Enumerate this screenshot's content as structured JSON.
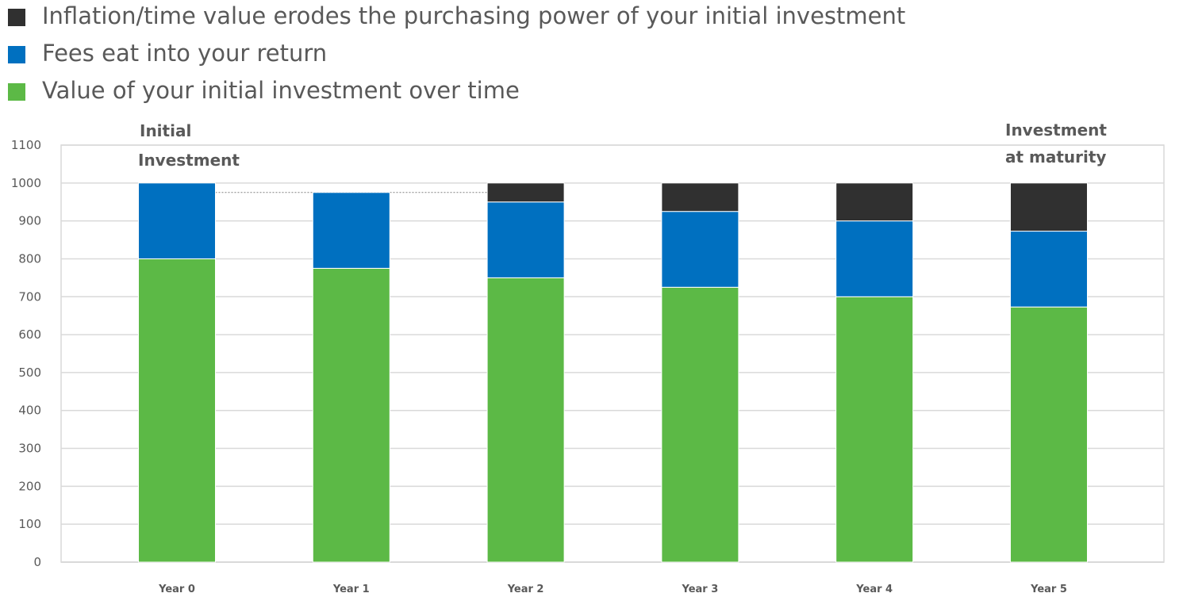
{
  "chart_data": {
    "type": "bar",
    "stacked": true,
    "categories": [
      "Year 0",
      "Year 1",
      "Year 2",
      "Year 3",
      "Year 4",
      "Year 5"
    ],
    "series": [
      {
        "name": "Value of your initial investment over time",
        "color": "#5cb946",
        "values": [
          800,
          775,
          750,
          725,
          700,
          673
        ]
      },
      {
        "name": "Fees eat into your return",
        "color": "#0070c0",
        "values": [
          200,
          200,
          200,
          200,
          200,
          200
        ]
      },
      {
        "name": "Inflation/time value erodes the purchasing power of your initial investment",
        "color": "#303030",
        "values": [
          0,
          0,
          50,
          75,
          100,
          127
        ]
      }
    ],
    "y_ticks": [
      0,
      100,
      200,
      300,
      400,
      500,
      600,
      700,
      800,
      900,
      1000,
      1100
    ],
    "ylim": [
      0,
      1100
    ],
    "grid": true,
    "legend_position": "top-left",
    "reference_line": {
      "value": 975,
      "from_category": "Year 0",
      "to_category": "Year 2"
    },
    "annotations": [
      {
        "lines": [
          "Initial",
          "Investment"
        ],
        "category": "Year 0"
      },
      {
        "lines": [
          "Investment",
          "at maturity"
        ],
        "category": "Year 5"
      }
    ]
  }
}
